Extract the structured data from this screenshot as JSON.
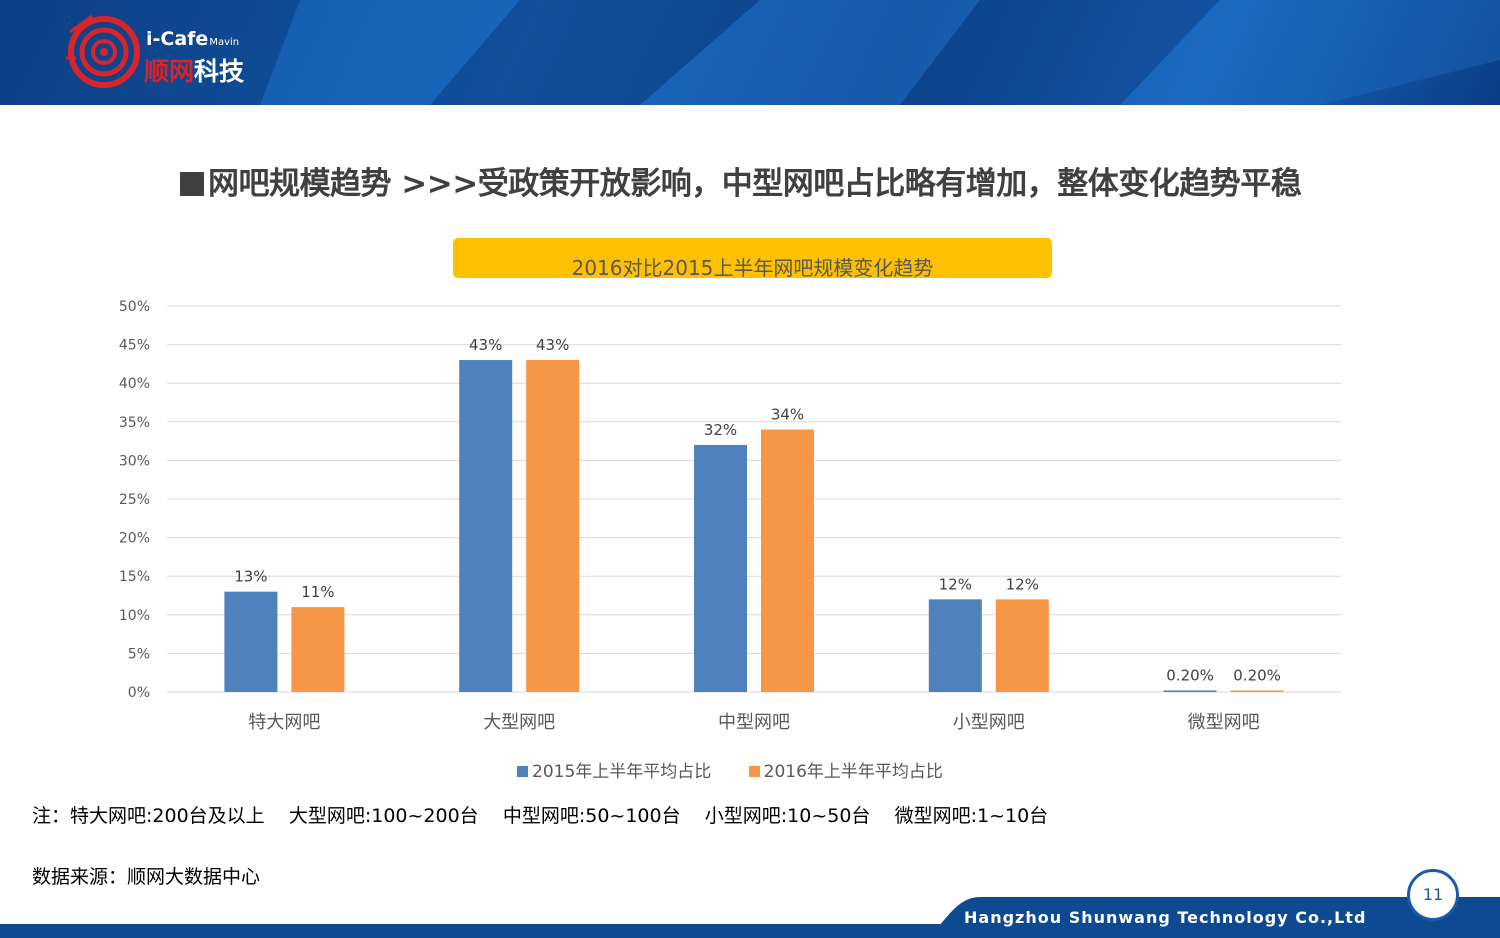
{
  "logo": {
    "brand": "i-Cafe",
    "brand_sub": "Mavin",
    "cn_part1": "顺网",
    "cn_part2": "科技"
  },
  "headline": "网吧规模趋势   >>>受政策开放影响，中型网吧占比略有增加，整体变化趋势平稳",
  "chart_data": {
    "type": "bar",
    "title": "2016对比2015上半年网吧规模变化趋势",
    "categories": [
      "特大网吧",
      "大型网吧",
      "中型网吧",
      "小型网吧",
      "微型网吧"
    ],
    "series": [
      {
        "name": "2015年上半年平均占比",
        "values": [
          13,
          43,
          32,
          12,
          0.2
        ],
        "labels": [
          "13%",
          "43%",
          "32%",
          "12%",
          "0.20%"
        ],
        "color": "#4f81bd"
      },
      {
        "name": "2016年上半年平均占比",
        "values": [
          11,
          43,
          34,
          12,
          0.2
        ],
        "labels": [
          "11%",
          "43%",
          "34%",
          "12%",
          "0.20%"
        ],
        "color": "#f79646"
      }
    ],
    "ylim": [
      0,
      50
    ],
    "yticks": [
      "0%",
      "5%",
      "10%",
      "15%",
      "20%",
      "25%",
      "30%",
      "35%",
      "40%",
      "45%",
      "50%"
    ],
    "grid": true,
    "legend": "bottom"
  },
  "note": "注：特大网吧:200台及以上    大型网吧:100~200台    中型网吧:50~100台    小型网吧:10~50台    微型网吧:1~10台",
  "source": "数据来源：顺网大数据中心",
  "footer": {
    "company": "Hangzhou Shunwang Technology Co.,Ltd",
    "page_number": "11"
  }
}
